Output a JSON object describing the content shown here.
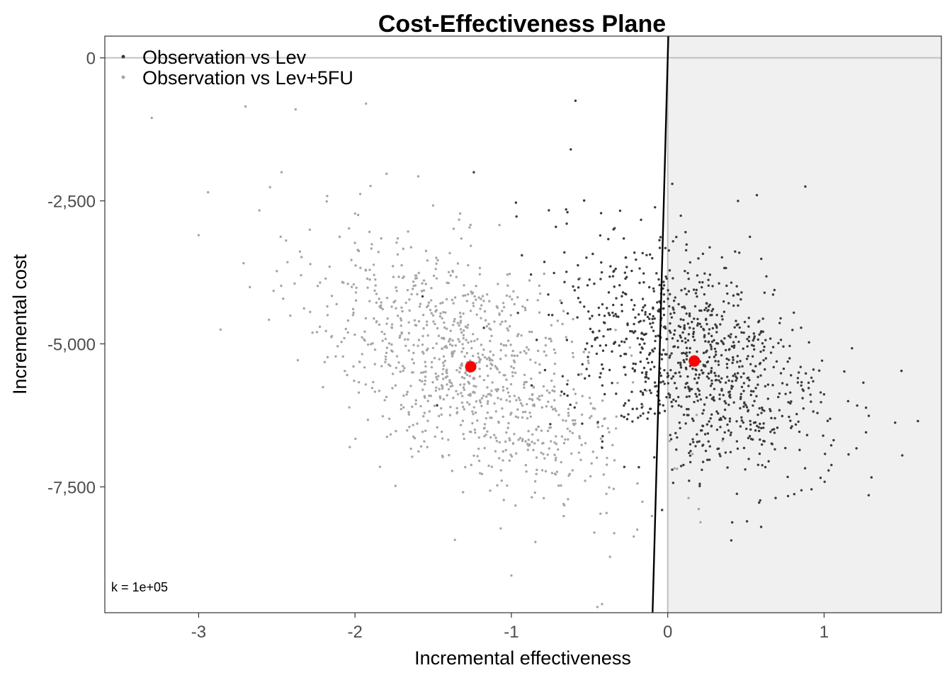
{
  "chart_data": {
    "type": "scatter",
    "title": "Cost-Effectiveness Plane",
    "xlabel": "Incremental effectiveness",
    "ylabel": "Incremental cost",
    "xlim": [
      -3.6,
      1.75
    ],
    "ylim": [
      -9700,
      380
    ],
    "x_ticks": [
      -3,
      -2,
      -1,
      0,
      1
    ],
    "x_tick_labels": [
      "-3",
      "-2",
      "-1",
      "0",
      "1"
    ],
    "y_ticks": [
      0,
      -2500,
      -5000,
      -7500
    ],
    "y_tick_labels": [
      "0",
      "-2,500",
      "-5,000",
      "-7,500"
    ],
    "grid": false,
    "legend_position": "top-left",
    "annotation": "k = 1e+05",
    "wtp_line": {
      "slope": 100000
    },
    "sustainability_region": "x >= 0",
    "colors": {
      "series_lev": "#3a3a3a",
      "series_lev5fu": "#a6a6a6",
      "means": "#ff0000",
      "region": "#f0f0f0",
      "reference_lines": "#c0c0c0"
    },
    "series": [
      {
        "name": "Observation vs Lev",
        "mean": {
          "x": 0.17,
          "y": -5300
        },
        "spread": {
          "x_sd": 0.42,
          "y_sd": 1050,
          "correlation": -0.45,
          "n": 1000
        },
        "outliers": [
          {
            "x": -0.59,
            "y": -750
          },
          {
            "x": -0.62,
            "y": -1600
          },
          {
            "x": -1.24,
            "y": -2000
          },
          {
            "x": -0.65,
            "y": -2650
          },
          {
            "x": 0.57,
            "y": -2400
          },
          {
            "x": 0.88,
            "y": -2250
          },
          {
            "x": 1.6,
            "y": -6350
          },
          {
            "x": 1.5,
            "y": -6950
          }
        ]
      },
      {
        "name": "Observation vs Lev+5FU",
        "mean": {
          "x": -1.26,
          "y": -5400
        },
        "spread": {
          "x_sd": 0.5,
          "y_sd": 1150,
          "correlation": -0.55,
          "n": 1000
        },
        "outliers": [
          {
            "x": -3.3,
            "y": -1050
          },
          {
            "x": -2.7,
            "y": -850
          },
          {
            "x": -2.38,
            "y": -900
          },
          {
            "x": -1.93,
            "y": -800
          },
          {
            "x": -2.86,
            "y": -4750
          },
          {
            "x": -2.94,
            "y": -2350
          },
          {
            "x": -3.0,
            "y": -3100
          },
          {
            "x": -0.42,
            "y": -9550
          },
          {
            "x": -0.45,
            "y": -9600
          },
          {
            "x": -1.0,
            "y": -9050
          }
        ]
      }
    ]
  }
}
